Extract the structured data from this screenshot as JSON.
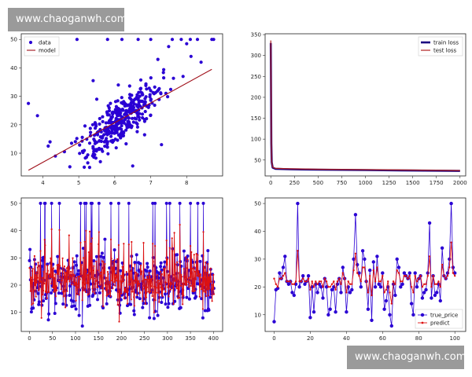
{
  "watermark": {
    "top_text": "www.chaoganwh.com",
    "bottom_text": "www.chaoganwh.com"
  },
  "chart_data": [
    {
      "type": "scatter",
      "xlim": [
        3.4,
        9.0
      ],
      "ylim": [
        2,
        52
      ],
      "xticks": [
        4,
        5,
        6,
        7,
        8
      ],
      "yticks": [
        10,
        20,
        30,
        40,
        50
      ],
      "legend": {
        "position": "top-left",
        "entries": [
          "data",
          "model"
        ]
      },
      "colors": {
        "data": "#2a00d4",
        "model": "#a0101a"
      },
      "model_line": {
        "x": [
          3.6,
          8.7
        ],
        "y": [
          4.0,
          39.5
        ]
      },
      "outliers": [
        {
          "x": 3.6,
          "y": 27.5
        },
        {
          "x": 3.85,
          "y": 23.2
        },
        {
          "x": 4.15,
          "y": 12.5
        },
        {
          "x": 4.2,
          "y": 14.0
        },
        {
          "x": 4.35,
          "y": 9.0
        },
        {
          "x": 4.6,
          "y": 10.5
        },
        {
          "x": 4.95,
          "y": 50.0
        },
        {
          "x": 5.8,
          "y": 50.0
        },
        {
          "x": 6.2,
          "y": 50.0
        },
        {
          "x": 6.65,
          "y": 50.0
        },
        {
          "x": 7.0,
          "y": 50.0
        },
        {
          "x": 7.6,
          "y": 50.0
        },
        {
          "x": 7.85,
          "y": 50.0
        },
        {
          "x": 8.1,
          "y": 50.0
        },
        {
          "x": 8.3,
          "y": 50.0
        },
        {
          "x": 8.7,
          "y": 50.0
        },
        {
          "x": 8.75,
          "y": 50.0
        },
        {
          "x": 7.5,
          "y": 47.5
        },
        {
          "x": 8.0,
          "y": 48.5
        },
        {
          "x": 7.2,
          "y": 43.0
        },
        {
          "x": 7.9,
          "y": 37.0
        },
        {
          "x": 8.4,
          "y": 42.0
        },
        {
          "x": 5.5,
          "y": 29.0
        },
        {
          "x": 5.3,
          "y": 5.0
        },
        {
          "x": 5.6,
          "y": 7.0
        },
        {
          "x": 6.5,
          "y": 5.5
        },
        {
          "x": 4.8,
          "y": 13.5
        },
        {
          "x": 7.3,
          "y": 13.0
        },
        {
          "x": 5.4,
          "y": 35.5
        },
        {
          "x": 6.1,
          "y": 34.0
        }
      ],
      "cluster": {
        "count": 360,
        "x_center": 6.2,
        "x_spread": 0.55,
        "slope": 9.1
      }
    },
    {
      "type": "line",
      "xlim": [
        -60,
        2060
      ],
      "ylim": [
        12,
        352
      ],
      "xticks": [
        0,
        250,
        500,
        750,
        1000,
        1250,
        1500,
        1750,
        2000
      ],
      "yticks": [
        50,
        100,
        150,
        200,
        250,
        300,
        350
      ],
      "legend": {
        "position": "top-right",
        "entries": [
          "train loss",
          "test loss"
        ]
      },
      "colors": {
        "train loss": "#1a0080",
        "test loss": "#b02020"
      },
      "series": [
        {
          "name": "train loss",
          "x": [
            0,
            3,
            6,
            10,
            20,
            50,
            200,
            500,
            1000,
            1500,
            2000
          ],
          "y": [
            330,
            200,
            90,
            45,
            32,
            29,
            28,
            27,
            26,
            25,
            24
          ]
        },
        {
          "name": "test loss",
          "x": [
            0,
            3,
            6,
            10,
            20,
            50,
            200,
            500,
            1000,
            1500,
            2000
          ],
          "y": [
            336,
            210,
            95,
            47,
            33,
            30,
            29,
            28,
            27,
            26,
            25
          ]
        }
      ]
    },
    {
      "type": "line",
      "xlim": [
        -18,
        420
      ],
      "ylim": [
        3,
        52
      ],
      "xticks": [
        0,
        50,
        100,
        150,
        200,
        250,
        300,
        350,
        400
      ],
      "yticks": [
        10,
        20,
        30,
        40,
        50
      ],
      "colors": {
        "true": "#2a00d4",
        "predict": "#dd1111"
      },
      "n_points": 402,
      "seed": 7
    },
    {
      "type": "line",
      "xlim": [
        -5,
        106
      ],
      "ylim": [
        4,
        52
      ],
      "xticks": [
        0,
        20,
        40,
        60,
        80,
        100
      ],
      "yticks": [
        10,
        20,
        30,
        40,
        50
      ],
      "legend": {
        "position": "bottom-right",
        "entries": [
          "true_price",
          "predict"
        ]
      },
      "colors": {
        "true_price": "#2a00d4",
        "predict": "#dd1111"
      },
      "series": [
        {
          "name": "true_price",
          "x_start": 0,
          "values": [
            7.5,
            19,
            19.5,
            25,
            23,
            27,
            31,
            22,
            21,
            22,
            18,
            17,
            21,
            50,
            20,
            22,
            24,
            21,
            22,
            24,
            9,
            20,
            11,
            21,
            18,
            21,
            20,
            16,
            23,
            20,
            10,
            12,
            19,
            20,
            11,
            21,
            23,
            18,
            27,
            23,
            11,
            20,
            18,
            19,
            30,
            46,
            28,
            25,
            20,
            33,
            30,
            22,
            12,
            26,
            8,
            29,
            20,
            31,
            21,
            20,
            25,
            12,
            15,
            20,
            10,
            6,
            21,
            17,
            30,
            27,
            20,
            21,
            25,
            24,
            23,
            25,
            14,
            10,
            25,
            20,
            23,
            24,
            16,
            18,
            19,
            25,
            43,
            16,
            24,
            17,
            18,
            21,
            15,
            34,
            24,
            23,
            25,
            30,
            50,
            27,
            25
          ]
        },
        {
          "name": "predict",
          "x_start": 0,
          "values": [
            23,
            21,
            20,
            23,
            23,
            24,
            25,
            22,
            22,
            22,
            21,
            21,
            22,
            33,
            22,
            22,
            23,
            22,
            22,
            23,
            19,
            22,
            20,
            22,
            21,
            22,
            22,
            20,
            23,
            22,
            20,
            20,
            21,
            22,
            19,
            22,
            23,
            21,
            25,
            23,
            18,
            22,
            21,
            21,
            26,
            32,
            25,
            24,
            22,
            27,
            27,
            22,
            18,
            24,
            17,
            26,
            22,
            27,
            22,
            22,
            24,
            18,
            19,
            22,
            18,
            14,
            22,
            21,
            26,
            25,
            22,
            22,
            24,
            24,
            23,
            24,
            20,
            18,
            24,
            22,
            23,
            24,
            20,
            21,
            21,
            24,
            31,
            20,
            24,
            21,
            21,
            22,
            20,
            28,
            24,
            23,
            24,
            27,
            36,
            25,
            24
          ]
        }
      ]
    }
  ]
}
